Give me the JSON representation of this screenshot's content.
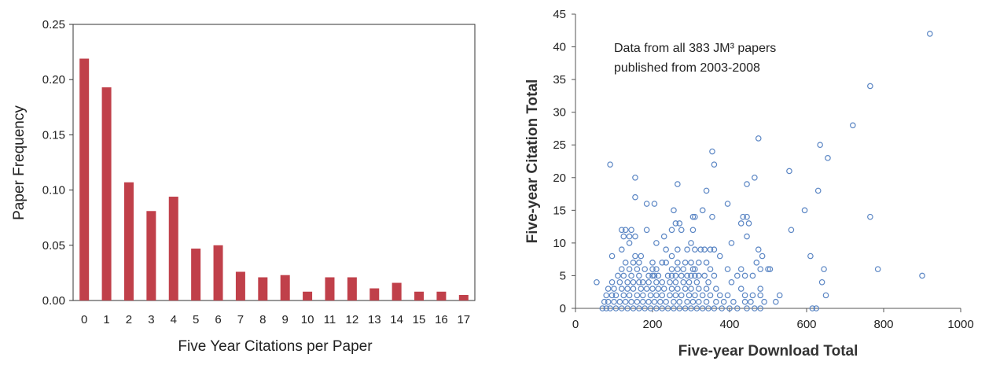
{
  "chart_data": [
    {
      "type": "bar",
      "title": "",
      "xlabel": "Five Year Citations per Paper",
      "ylabel": "Paper Frequency",
      "categories": [
        "0",
        "1",
        "2",
        "3",
        "4",
        "5",
        "6",
        "7",
        "8",
        "9",
        "10",
        "11",
        "12",
        "13",
        "14",
        "15",
        "16",
        "17"
      ],
      "values": [
        0.219,
        0.193,
        0.107,
        0.081,
        0.094,
        0.047,
        0.05,
        0.026,
        0.021,
        0.023,
        0.008,
        0.021,
        0.021,
        0.011,
        0.016,
        0.008,
        0.008,
        0.005
      ],
      "ylim": [
        0,
        0.25
      ],
      "yticks": [
        "0.00",
        "0.05",
        "0.10",
        "0.15",
        "0.20",
        "0.25"
      ],
      "grid": false,
      "bar_color": "#c0404a"
    },
    {
      "type": "scatter",
      "title": "",
      "xlabel": "Five-year Download Total",
      "ylabel": "Five-year Citation Total",
      "annotation": [
        "Data from all 383 JM³ papers",
        "published from 2003-2008"
      ],
      "xlim": [
        0,
        1000
      ],
      "ylim": [
        0,
        45
      ],
      "xticks": [
        "0",
        "200",
        "400",
        "600",
        "800",
        "1000"
      ],
      "yticks": [
        "0",
        "5",
        "10",
        "15",
        "20",
        "25",
        "30",
        "35",
        "40",
        "45"
      ],
      "grid": false,
      "marker_color": "#5b86c4",
      "points": [
        [
          920,
          42
        ],
        [
          765,
          34
        ],
        [
          720,
          28
        ],
        [
          475,
          26
        ],
        [
          635,
          25
        ],
        [
          355,
          24
        ],
        [
          655,
          23
        ],
        [
          360,
          22
        ],
        [
          90,
          22
        ],
        [
          555,
          21
        ],
        [
          155,
          20
        ],
        [
          465,
          20
        ],
        [
          445,
          19
        ],
        [
          265,
          19
        ],
        [
          340,
          18
        ],
        [
          630,
          18
        ],
        [
          155,
          17
        ],
        [
          185,
          16
        ],
        [
          205,
          16
        ],
        [
          395,
          16
        ],
        [
          255,
          15
        ],
        [
          595,
          15
        ],
        [
          330,
          15
        ],
        [
          765,
          14
        ],
        [
          435,
          14
        ],
        [
          445,
          14
        ],
        [
          310,
          14
        ],
        [
          305,
          14
        ],
        [
          355,
          14
        ],
        [
          260,
          13
        ],
        [
          270,
          13
        ],
        [
          250,
          12
        ],
        [
          130,
          12
        ],
        [
          275,
          12
        ],
        [
          145,
          12
        ],
        [
          305,
          12
        ],
        [
          185,
          12
        ],
        [
          560,
          12
        ],
        [
          450,
          13
        ],
        [
          430,
          13
        ],
        [
          120,
          12
        ],
        [
          140,
          11
        ],
        [
          125,
          11
        ],
        [
          155,
          11
        ],
        [
          230,
          11
        ],
        [
          405,
          10
        ],
        [
          140,
          10
        ],
        [
          210,
          10
        ],
        [
          300,
          10
        ],
        [
          310,
          9
        ],
        [
          335,
          9
        ],
        [
          445,
          11
        ],
        [
          120,
          9
        ],
        [
          265,
          9
        ],
        [
          325,
          9
        ],
        [
          290,
          9
        ],
        [
          350,
          9
        ],
        [
          360,
          9
        ],
        [
          475,
          9
        ],
        [
          235,
          9
        ],
        [
          95,
          8
        ],
        [
          155,
          8
        ],
        [
          170,
          8
        ],
        [
          250,
          8
        ],
        [
          375,
          8
        ],
        [
          485,
          8
        ],
        [
          610,
          8
        ],
        [
          130,
          7
        ],
        [
          150,
          7
        ],
        [
          165,
          7
        ],
        [
          200,
          7
        ],
        [
          225,
          7
        ],
        [
          235,
          7
        ],
        [
          265,
          7
        ],
        [
          285,
          7
        ],
        [
          300,
          7
        ],
        [
          320,
          7
        ],
        [
          340,
          7
        ],
        [
          470,
          7
        ],
        [
          120,
          6
        ],
        [
          140,
          6
        ],
        [
          160,
          6
        ],
        [
          180,
          6
        ],
        [
          200,
          6
        ],
        [
          210,
          6
        ],
        [
          250,
          6
        ],
        [
          265,
          6
        ],
        [
          280,
          6
        ],
        [
          305,
          6
        ],
        [
          310,
          6
        ],
        [
          350,
          6
        ],
        [
          395,
          6
        ],
        [
          430,
          6
        ],
        [
          480,
          6
        ],
        [
          500,
          6
        ],
        [
          505,
          6
        ],
        [
          645,
          6
        ],
        [
          785,
          6
        ],
        [
          110,
          5
        ],
        [
          125,
          5
        ],
        [
          145,
          5
        ],
        [
          165,
          5
        ],
        [
          190,
          5
        ],
        [
          200,
          5
        ],
        [
          205,
          5
        ],
        [
          215,
          5
        ],
        [
          240,
          5
        ],
        [
          250,
          5
        ],
        [
          260,
          5
        ],
        [
          275,
          5
        ],
        [
          290,
          5
        ],
        [
          300,
          5
        ],
        [
          310,
          5
        ],
        [
          320,
          5
        ],
        [
          335,
          5
        ],
        [
          360,
          5
        ],
        [
          420,
          5
        ],
        [
          440,
          5
        ],
        [
          460,
          5
        ],
        [
          900,
          5
        ],
        [
          55,
          4
        ],
        [
          95,
          4
        ],
        [
          115,
          4
        ],
        [
          135,
          4
        ],
        [
          150,
          4
        ],
        [
          165,
          4
        ],
        [
          175,
          4
        ],
        [
          190,
          4
        ],
        [
          210,
          4
        ],
        [
          225,
          4
        ],
        [
          245,
          4
        ],
        [
          260,
          4
        ],
        [
          280,
          4
        ],
        [
          295,
          4
        ],
        [
          315,
          4
        ],
        [
          345,
          4
        ],
        [
          405,
          4
        ],
        [
          640,
          4
        ],
        [
          85,
          3
        ],
        [
          100,
          3
        ],
        [
          120,
          3
        ],
        [
          135,
          3
        ],
        [
          150,
          3
        ],
        [
          170,
          3
        ],
        [
          185,
          3
        ],
        [
          200,
          3
        ],
        [
          215,
          3
        ],
        [
          230,
          3
        ],
        [
          250,
          3
        ],
        [
          265,
          3
        ],
        [
          285,
          3
        ],
        [
          300,
          3
        ],
        [
          320,
          3
        ],
        [
          340,
          3
        ],
        [
          365,
          3
        ],
        [
          430,
          3
        ],
        [
          480,
          3
        ],
        [
          80,
          2
        ],
        [
          95,
          2
        ],
        [
          105,
          2
        ],
        [
          125,
          2
        ],
        [
          140,
          2
        ],
        [
          160,
          2
        ],
        [
          175,
          2
        ],
        [
          195,
          2
        ],
        [
          210,
          2
        ],
        [
          225,
          2
        ],
        [
          245,
          2
        ],
        [
          260,
          2
        ],
        [
          275,
          2
        ],
        [
          295,
          2
        ],
        [
          310,
          2
        ],
        [
          330,
          2
        ],
        [
          350,
          2
        ],
        [
          375,
          2
        ],
        [
          395,
          2
        ],
        [
          440,
          2
        ],
        [
          460,
          2
        ],
        [
          480,
          2
        ],
        [
          530,
          2
        ],
        [
          650,
          2
        ],
        [
          75,
          1
        ],
        [
          85,
          1
        ],
        [
          100,
          1
        ],
        [
          115,
          1
        ],
        [
          130,
          1
        ],
        [
          145,
          1
        ],
        [
          160,
          1
        ],
        [
          175,
          1
        ],
        [
          190,
          1
        ],
        [
          205,
          1
        ],
        [
          220,
          1
        ],
        [
          235,
          1
        ],
        [
          255,
          1
        ],
        [
          270,
          1
        ],
        [
          290,
          1
        ],
        [
          305,
          1
        ],
        [
          320,
          1
        ],
        [
          340,
          1
        ],
        [
          365,
          1
        ],
        [
          385,
          1
        ],
        [
          410,
          1
        ],
        [
          440,
          1
        ],
        [
          455,
          1
        ],
        [
          490,
          1
        ],
        [
          520,
          1
        ],
        [
          70,
          0
        ],
        [
          80,
          0
        ],
        [
          90,
          0
        ],
        [
          105,
          0
        ],
        [
          120,
          0
        ],
        [
          135,
          0
        ],
        [
          150,
          0
        ],
        [
          165,
          0
        ],
        [
          180,
          0
        ],
        [
          195,
          0
        ],
        [
          210,
          0
        ],
        [
          225,
          0
        ],
        [
          240,
          0
        ],
        [
          255,
          0
        ],
        [
          270,
          0
        ],
        [
          285,
          0
        ],
        [
          300,
          0
        ],
        [
          315,
          0
        ],
        [
          330,
          0
        ],
        [
          345,
          0
        ],
        [
          360,
          0
        ],
        [
          380,
          0
        ],
        [
          400,
          0
        ],
        [
          420,
          0
        ],
        [
          445,
          0
        ],
        [
          465,
          0
        ],
        [
          480,
          0
        ],
        [
          615,
          0
        ],
        [
          625,
          0
        ]
      ]
    }
  ]
}
